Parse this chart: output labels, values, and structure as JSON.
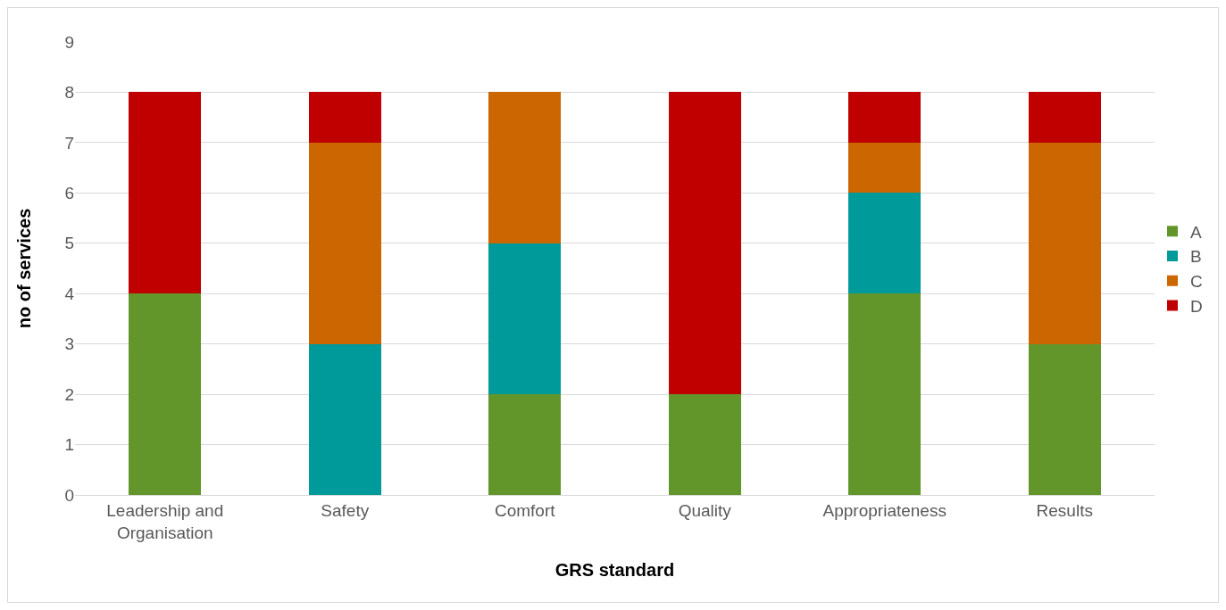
{
  "chart_data": {
    "type": "bar",
    "stacked": true,
    "xlabel": "GRS standard",
    "ylabel": "no of services",
    "categories": [
      "Leadership and Organisation",
      "Safety",
      "Comfort",
      "Quality",
      "Appropriateness",
      "Results"
    ],
    "series": [
      {
        "name": "A",
        "color": "#63962a",
        "values": [
          4,
          0,
          2,
          2,
          4,
          3
        ]
      },
      {
        "name": "B",
        "color": "#009a9a",
        "values": [
          0,
          3,
          3,
          0,
          2,
          0
        ]
      },
      {
        "name": "C",
        "color": "#cc6600",
        "values": [
          0,
          4,
          3,
          0,
          1,
          4
        ]
      },
      {
        "name": "D",
        "color": "#c00000",
        "values": [
          4,
          1,
          0,
          6,
          1,
          1
        ]
      }
    ],
    "ylim": [
      0,
      9
    ],
    "yticks": [
      0,
      1,
      2,
      3,
      4,
      5,
      6,
      7,
      8,
      9
    ],
    "grid": "y",
    "legend": "right"
  }
}
